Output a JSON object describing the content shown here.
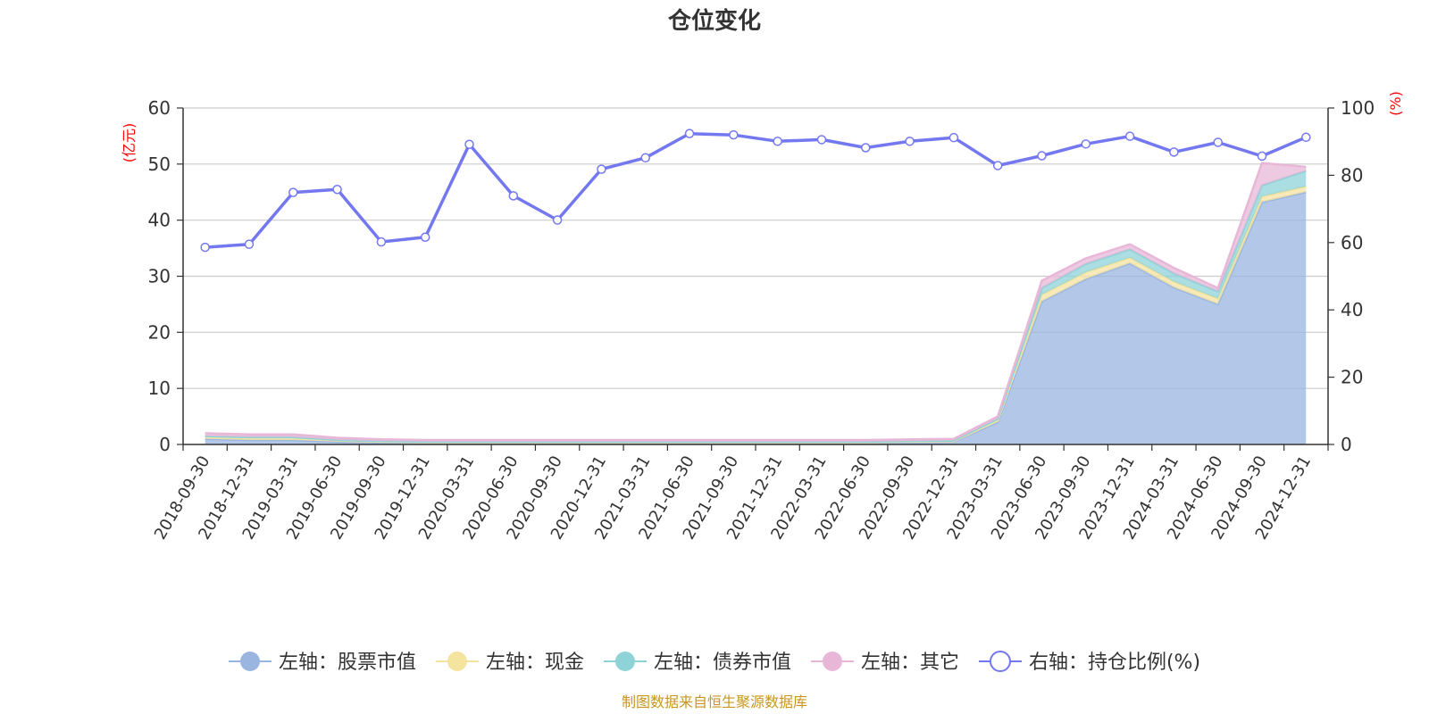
{
  "chart_data": {
    "type": "area",
    "title": "仓位变化",
    "left_axis": {
      "unit": "(亿元)",
      "ylim": [
        0,
        60
      ],
      "ticks": [
        "0",
        "10",
        "20",
        "30",
        "40",
        "50",
        "60"
      ]
    },
    "right_axis": {
      "unit": "(%)",
      "ylim": [
        0,
        100
      ],
      "ticks": [
        "0",
        "20",
        "40",
        "60",
        "80",
        "100"
      ]
    },
    "categories": [
      "2018-09-30",
      "2018-12-31",
      "2019-03-31",
      "2019-06-30",
      "2019-09-30",
      "2019-12-31",
      "2020-03-31",
      "2020-06-30",
      "2020-09-30",
      "2020-12-31",
      "2021-03-31",
      "2021-06-30",
      "2021-09-30",
      "2021-12-31",
      "2022-03-31",
      "2022-06-30",
      "2022-09-30",
      "2022-12-31",
      "2023-03-31",
      "2023-06-30",
      "2023-09-30",
      "2023-12-31",
      "2024-03-31",
      "2024-06-30",
      "2024-09-30",
      "2024-12-31"
    ],
    "stacked_series": [
      {
        "name": "左轴：股票市值",
        "axis": "left",
        "color": "#9ab6e0",
        "values": [
          1.0,
          0.8,
          0.8,
          0.5,
          0.4,
          0.3,
          0.3,
          0.3,
          0.3,
          0.3,
          0.3,
          0.3,
          0.3,
          0.3,
          0.3,
          0.3,
          0.4,
          0.5,
          4.0,
          25.5,
          29.5,
          32.3,
          28.0,
          25.0,
          43.2,
          45.0
        ]
      },
      {
        "name": "左轴：现金",
        "axis": "left",
        "color": "#f5e3a0",
        "values": [
          0.3,
          0.3,
          0.3,
          0.2,
          0.1,
          0.1,
          0.1,
          0.1,
          0.1,
          0.1,
          0.1,
          0.1,
          0.1,
          0.1,
          0.1,
          0.1,
          0.1,
          0.1,
          0.3,
          1.2,
          1.2,
          1.0,
          1.0,
          1.0,
          1.0,
          1.0
        ]
      },
      {
        "name": "左轴：债券市值",
        "axis": "left",
        "color": "#8ed3d8",
        "values": [
          0.2,
          0.2,
          0.2,
          0.1,
          0.1,
          0.1,
          0.1,
          0.1,
          0.1,
          0.1,
          0.1,
          0.1,
          0.1,
          0.1,
          0.1,
          0.1,
          0.1,
          0.1,
          0.3,
          1.2,
          1.5,
          1.5,
          1.5,
          1.3,
          2.0,
          2.8
        ]
      },
      {
        "name": "左轴：其它",
        "axis": "left",
        "color": "#e8b7d8",
        "values": [
          0.5,
          0.5,
          0.5,
          0.4,
          0.3,
          0.3,
          0.3,
          0.3,
          0.3,
          0.3,
          0.3,
          0.3,
          0.3,
          0.3,
          0.3,
          0.3,
          0.3,
          0.3,
          0.4,
          1.3,
          1.0,
          0.9,
          1.0,
          0.6,
          4.0,
          0.7
        ]
      }
    ],
    "line_series": {
      "name": "右轴：持仓比例(%)",
      "axis": "right",
      "color": "#7478f0",
      "values": [
        58.6,
        59.5,
        74.9,
        75.8,
        60.2,
        61.6,
        89.2,
        73.9,
        66.7,
        81.8,
        85.2,
        92.4,
        92.0,
        90.1,
        90.6,
        88.2,
        90.1,
        91.2,
        82.9,
        85.8,
        89.3,
        91.6,
        86.9,
        89.8,
        85.7,
        91.3
      ]
    },
    "legend_position": "bottom",
    "grid": true
  },
  "source_note": "制图数据来自恒生聚源数据库"
}
